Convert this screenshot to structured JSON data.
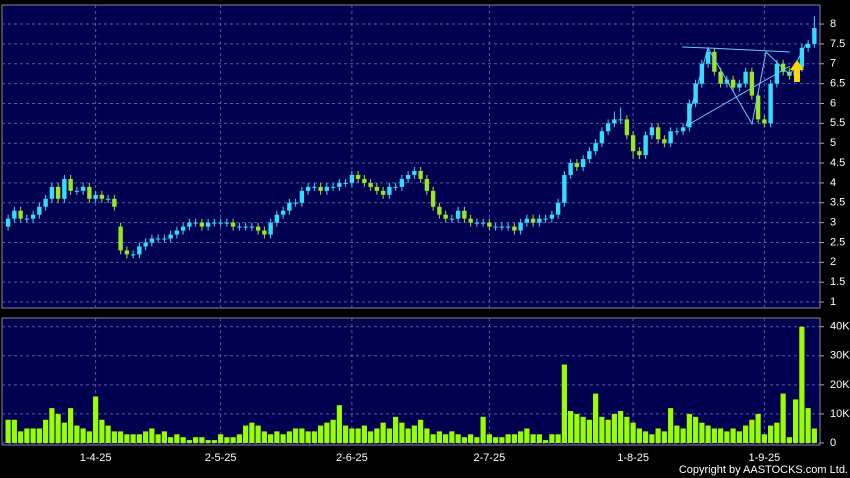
{
  "chart_data": [
    {
      "type": "candlestick",
      "up_color": "#33ddff",
      "down_color": "#99e624",
      "grid": true,
      "ylim": [
        0.85,
        8.48
      ],
      "yticks": [
        1,
        1.5,
        2,
        2.5,
        3,
        3.5,
        4,
        4.5,
        5,
        5.5,
        6,
        6.5,
        7,
        7.5,
        8
      ],
      "open": [
        2.9,
        3.1,
        3.3,
        3.1,
        3.1,
        3.2,
        3.4,
        3.6,
        3.9,
        3.6,
        4.1,
        3.8,
        3.8,
        3.9,
        3.6,
        3.7,
        3.6,
        3.6,
        2.9,
        2.3,
        2.2,
        2.2,
        2.4,
        2.5,
        2.6,
        2.6,
        2.6,
        2.7,
        2.8,
        2.9,
        3.0,
        3.0,
        2.9,
        3.0,
        3.0,
        3.0,
        3.0,
        2.9,
        2.9,
        2.9,
        2.9,
        2.8,
        2.7,
        3.0,
        3.2,
        3.3,
        3.5,
        3.5,
        3.8,
        3.9,
        3.9,
        3.8,
        3.9,
        3.9,
        4.0,
        4.0,
        4.2,
        4.1,
        4.0,
        3.9,
        3.8,
        3.7,
        3.9,
        3.9,
        4.1,
        4.2,
        4.3,
        4.1,
        3.8,
        3.4,
        3.2,
        3.1,
        3.1,
        3.3,
        3.1,
        3.0,
        3.0,
        3.0,
        2.9,
        2.9,
        2.9,
        2.9,
        2.8,
        3.0,
        3.1,
        3.0,
        3.1,
        3.1,
        3.2,
        3.5,
        4.2,
        4.5,
        4.4,
        4.6,
        4.8,
        5.0,
        5.3,
        5.5,
        5.6,
        5.6,
        5.2,
        4.8,
        4.7,
        5.2,
        5.4,
        5.1,
        5.0,
        5.3,
        5.3,
        5.4,
        6.0,
        6.5,
        7.0,
        7.3,
        6.8,
        6.5,
        6.6,
        6.4,
        6.5,
        6.8,
        6.2,
        5.6,
        5.5,
        6.5,
        7.0,
        6.8,
        6.7,
        6.9,
        7.4,
        7.5
      ],
      "high": [
        3.2,
        3.4,
        3.4,
        3.2,
        3.3,
        3.5,
        3.7,
        4.0,
        4.0,
        4.2,
        4.2,
        3.9,
        4.0,
        4.0,
        3.8,
        3.8,
        3.7,
        3.7,
        3.0,
        2.4,
        2.3,
        2.5,
        2.6,
        2.7,
        2.7,
        2.7,
        2.8,
        2.9,
        3.0,
        3.1,
        3.1,
        3.1,
        3.1,
        3.1,
        3.1,
        3.1,
        3.1,
        3.0,
        3.0,
        3.0,
        3.0,
        2.9,
        3.1,
        3.3,
        3.4,
        3.6,
        3.6,
        3.9,
        4.0,
        4.0,
        4.0,
        4.0,
        4.0,
        4.1,
        4.1,
        4.3,
        4.3,
        4.2,
        4.1,
        4.0,
        3.9,
        4.0,
        4.0,
        4.2,
        4.3,
        4.4,
        4.4,
        4.2,
        3.9,
        3.5,
        3.3,
        3.2,
        3.4,
        3.4,
        3.2,
        3.1,
        3.1,
        3.1,
        3.0,
        3.0,
        3.0,
        3.0,
        3.1,
        3.2,
        3.2,
        3.2,
        3.2,
        3.3,
        3.6,
        4.3,
        4.6,
        4.6,
        4.7,
        4.9,
        5.1,
        5.4,
        5.6,
        5.8,
        5.9,
        5.7,
        5.3,
        4.9,
        5.3,
        5.5,
        5.5,
        5.2,
        5.4,
        5.4,
        5.5,
        6.1,
        6.6,
        7.1,
        7.4,
        7.4,
        6.9,
        6.7,
        6.7,
        6.6,
        6.9,
        6.9,
        6.3,
        5.7,
        6.6,
        7.1,
        7.1,
        6.9,
        7.0,
        7.5,
        7.6,
        8.2
      ],
      "low": [
        2.8,
        3.0,
        3.0,
        3.0,
        3.0,
        3.1,
        3.3,
        3.5,
        3.5,
        3.5,
        3.7,
        3.7,
        3.7,
        3.5,
        3.5,
        3.5,
        3.5,
        3.3,
        2.2,
        2.1,
        2.1,
        2.1,
        2.3,
        2.4,
        2.5,
        2.5,
        2.5,
        2.6,
        2.7,
        2.8,
        2.9,
        2.8,
        2.8,
        2.9,
        2.9,
        2.9,
        2.8,
        2.8,
        2.8,
        2.8,
        2.7,
        2.6,
        2.6,
        2.9,
        3.1,
        3.2,
        3.4,
        3.4,
        3.7,
        3.8,
        3.7,
        3.7,
        3.8,
        3.8,
        3.9,
        3.9,
        4.0,
        3.9,
        3.8,
        3.7,
        3.6,
        3.6,
        3.8,
        3.8,
        4.0,
        4.1,
        4.0,
        3.7,
        3.3,
        3.1,
        3.0,
        3.0,
        3.0,
        3.0,
        2.9,
        2.9,
        2.9,
        2.8,
        2.8,
        2.8,
        2.8,
        2.7,
        2.7,
        2.9,
        2.9,
        2.9,
        3.0,
        3.0,
        3.1,
        3.4,
        4.1,
        4.3,
        4.3,
        4.5,
        4.7,
        4.9,
        5.2,
        5.4,
        5.5,
        5.1,
        4.6,
        4.6,
        4.6,
        5.1,
        5.0,
        4.9,
        4.9,
        5.2,
        5.2,
        5.3,
        5.9,
        6.4,
        6.9,
        6.7,
        6.4,
        6.4,
        6.3,
        6.3,
        6.4,
        6.1,
        5.5,
        5.4,
        5.4,
        6.4,
        6.7,
        6.6,
        6.6,
        6.8,
        7.3,
        7.4
      ],
      "close": [
        3.1,
        3.3,
        3.1,
        3.1,
        3.2,
        3.4,
        3.6,
        3.9,
        3.6,
        4.1,
        3.8,
        3.8,
        3.9,
        3.6,
        3.7,
        3.6,
        3.6,
        3.4,
        2.3,
        2.2,
        2.2,
        2.4,
        2.5,
        2.6,
        2.6,
        2.6,
        2.7,
        2.8,
        2.9,
        3.0,
        3.0,
        2.9,
        3.0,
        3.0,
        3.0,
        3.0,
        2.9,
        2.9,
        2.9,
        2.9,
        2.8,
        2.7,
        3.0,
        3.2,
        3.3,
        3.5,
        3.5,
        3.8,
        3.9,
        3.9,
        3.8,
        3.9,
        3.9,
        4.0,
        4.0,
        4.2,
        4.1,
        4.0,
        3.9,
        3.8,
        3.7,
        3.9,
        3.9,
        4.1,
        4.2,
        4.3,
        4.1,
        3.8,
        3.4,
        3.2,
        3.1,
        3.1,
        3.3,
        3.1,
        3.0,
        3.0,
        3.0,
        2.9,
        2.9,
        2.9,
        2.9,
        2.8,
        3.0,
        3.1,
        3.0,
        3.1,
        3.1,
        3.2,
        3.5,
        4.2,
        4.5,
        4.4,
        4.6,
        4.8,
        5.0,
        5.3,
        5.5,
        5.6,
        5.6,
        5.2,
        4.8,
        4.7,
        5.2,
        5.4,
        5.1,
        5.0,
        5.3,
        5.3,
        5.4,
        6.0,
        6.5,
        7.0,
        7.3,
        6.8,
        6.5,
        6.6,
        6.4,
        6.5,
        6.8,
        6.2,
        5.6,
        5.5,
        6.5,
        7.0,
        6.8,
        6.7,
        6.9,
        7.4,
        7.5,
        7.9
      ]
    },
    {
      "type": "bar",
      "color": "#99ff00",
      "grid": true,
      "ylim": [
        0,
        43
      ],
      "yticks": [
        0,
        {
          "value": 10,
          "label": "10K"
        },
        {
          "value": 20,
          "label": "20K"
        },
        {
          "value": 30,
          "label": "30K"
        },
        {
          "value": 40,
          "label": "40K"
        }
      ],
      "categories": [
        null,
        null,
        null,
        null,
        null,
        null,
        null,
        null,
        null,
        null,
        null,
        null,
        null,
        null,
        "1-4-25",
        null,
        null,
        null,
        null,
        null,
        null,
        null,
        null,
        null,
        null,
        null,
        null,
        null,
        null,
        null,
        null,
        null,
        null,
        null,
        "2-5-25",
        null,
        null,
        null,
        null,
        null,
        null,
        null,
        null,
        null,
        null,
        null,
        null,
        null,
        null,
        null,
        null,
        null,
        null,
        null,
        null,
        "2-6-25",
        null,
        null,
        null,
        null,
        null,
        null,
        null,
        null,
        null,
        null,
        null,
        null,
        null,
        null,
        null,
        null,
        null,
        null,
        null,
        null,
        null,
        "2-7-25",
        null,
        null,
        null,
        null,
        null,
        null,
        null,
        null,
        null,
        null,
        null,
        null,
        null,
        null,
        null,
        null,
        null,
        null,
        null,
        null,
        null,
        null,
        "1-8-25",
        null,
        null,
        null,
        null,
        null,
        null,
        null,
        null,
        null,
        null,
        null,
        null,
        null,
        null,
        null,
        null,
        null,
        null,
        null,
        null,
        "1-9-25",
        null,
        null,
        null,
        null,
        null,
        null,
        null,
        null
      ],
      "values": [
        8,
        8,
        4,
        5,
        5,
        5,
        8,
        12,
        10,
        7,
        12,
        6,
        5,
        4,
        16,
        8,
        6,
        4,
        4,
        3,
        3,
        3,
        4,
        5,
        3,
        4,
        2,
        3,
        2,
        1,
        2,
        2,
        1,
        1,
        3,
        2,
        2,
        3,
        6,
        7,
        6,
        4,
        3,
        4,
        3,
        4,
        5,
        5,
        4,
        4,
        6,
        7,
        8,
        13,
        6,
        5,
        5,
        6,
        4,
        5,
        7,
        5,
        9,
        7,
        5,
        6,
        8,
        5,
        3,
        4,
        3,
        4,
        3,
        2,
        3,
        2,
        9,
        3,
        2,
        2,
        3,
        3,
        4,
        5,
        3,
        3,
        1,
        3,
        3,
        27,
        11,
        10,
        9,
        8,
        17,
        9,
        8,
        10,
        11,
        9,
        7,
        5,
        4,
        3,
        5,
        4,
        12,
        6,
        5,
        10,
        9,
        7,
        6,
        5,
        5,
        4,
        5,
        4,
        6,
        8,
        10,
        3,
        6,
        7,
        17,
        2,
        15,
        40,
        12,
        5
      ]
    }
  ],
  "copyright": "Copyright by AASTOCKS.com Ltd."
}
